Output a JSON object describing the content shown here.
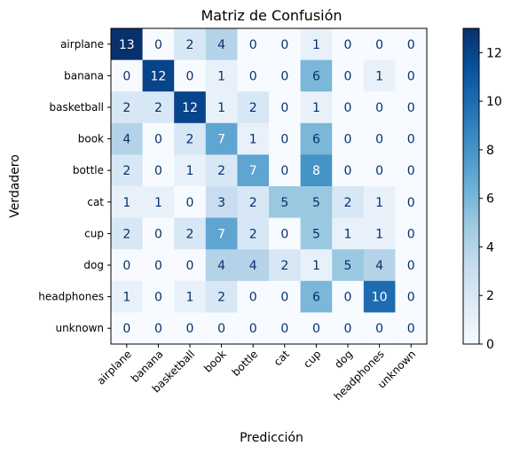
{
  "chart_data": {
    "type": "heatmap",
    "title": "Matriz de Confusión",
    "xlabel": "Predicción",
    "ylabel": "Verdadero",
    "x_categories": [
      "airplane",
      "banana",
      "basketball",
      "book",
      "bottle",
      "cat",
      "cup",
      "dog",
      "headphones",
      "unknown"
    ],
    "y_categories": [
      "airplane",
      "banana",
      "basketball",
      "book",
      "bottle",
      "cat",
      "cup",
      "dog",
      "headphones",
      "unknown"
    ],
    "values": [
      [
        13,
        0,
        2,
        4,
        0,
        0,
        1,
        0,
        0,
        0
      ],
      [
        0,
        12,
        0,
        1,
        0,
        0,
        6,
        0,
        1,
        0
      ],
      [
        2,
        2,
        12,
        1,
        2,
        0,
        1,
        0,
        0,
        0
      ],
      [
        4,
        0,
        2,
        7,
        1,
        0,
        6,
        0,
        0,
        0
      ],
      [
        2,
        0,
        1,
        2,
        7,
        0,
        8,
        0,
        0,
        0
      ],
      [
        1,
        1,
        0,
        3,
        2,
        5,
        5,
        2,
        1,
        0
      ],
      [
        2,
        0,
        2,
        7,
        2,
        0,
        5,
        1,
        1,
        0
      ],
      [
        0,
        0,
        0,
        4,
        4,
        2,
        1,
        5,
        4,
        0
      ],
      [
        1,
        0,
        1,
        2,
        0,
        0,
        6,
        0,
        10,
        0
      ],
      [
        0,
        0,
        0,
        0,
        0,
        0,
        0,
        0,
        0,
        0
      ]
    ],
    "colormap": "Blues",
    "colorbar": {
      "min": 0,
      "max": 13,
      "ticks": [
        0,
        2,
        4,
        6,
        8,
        10,
        12
      ]
    }
  }
}
